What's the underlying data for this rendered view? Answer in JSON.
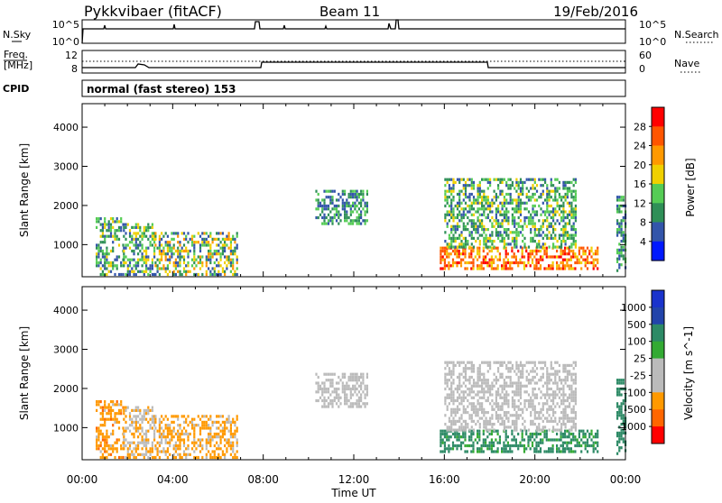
{
  "header": {
    "radar": "Pykkvibaer (fitACF)",
    "beam": "Beam 11",
    "date": "19/Feb/2016"
  },
  "sky_panel": {
    "left_label": "N.Sky",
    "right_label": "N.Search",
    "left_ticks": [
      "10^5",
      "10^0"
    ],
    "right_ticks": [
      "10^5",
      "10^0"
    ]
  },
  "freq_panel": {
    "left_label_line1": "Freq.",
    "left_label_line2": "[MHz]",
    "right_label": "Nave",
    "left_ticks": [
      "12",
      "8"
    ],
    "right_ticks": [
      "60",
      "0"
    ]
  },
  "cpid": {
    "label": "CPID",
    "text": "normal (fast stereo) 153"
  },
  "colors": {
    "power": [
      "#0019ff",
      "#3355aa",
      "#2f8f57",
      "#55cc55",
      "#f0d000",
      "#ff9900",
      "#ff5500",
      "#ff0000"
    ],
    "velocity": [
      "#ff0000",
      "#ff6600",
      "#ff9900",
      "#bbbbbb",
      "#bbbbbb",
      "#33aa33",
      "#2d8a66",
      "#2244aa",
      "#1a33cc"
    ]
  },
  "chart_data": [
    {
      "type": "heatmap",
      "ylabel": "Slant Range [km]",
      "y_ticks": [
        1000,
        2000,
        3000,
        4000
      ],
      "ylim": [
        180,
        4600
      ],
      "x_range_hours": [
        0,
        24
      ],
      "colorbar": {
        "label": "Power [dB]",
        "ticks": [
          "28",
          "24",
          "20",
          "16",
          "12",
          "8",
          "4"
        ],
        "range": [
          0,
          32
        ]
      },
      "clusters": [
        {
          "t0": 0.6,
          "t1": 1.8,
          "r0": 200,
          "r1": 1650,
          "v0": 4,
          "v1": 18
        },
        {
          "t0": 1.8,
          "t1": 3.2,
          "r0": 200,
          "r1": 1500,
          "v0": 4,
          "v1": 20
        },
        {
          "t0": 3.2,
          "t1": 6.8,
          "r0": 200,
          "r1": 1300,
          "v0": 4,
          "v1": 24
        },
        {
          "t0": 10.3,
          "t1": 12.6,
          "r0": 1500,
          "r1": 2350,
          "v0": 4,
          "v1": 16
        },
        {
          "t0": 15.8,
          "t1": 22.8,
          "r0": 350,
          "r1": 900,
          "v0": 18,
          "v1": 30
        },
        {
          "t0": 16.0,
          "t1": 21.8,
          "r0": 900,
          "r1": 2700,
          "v0": 6,
          "v1": 18
        },
        {
          "t0": 23.6,
          "t1": 24.0,
          "r0": 300,
          "r1": 2200,
          "v0": 4,
          "v1": 16
        }
      ]
    },
    {
      "type": "heatmap",
      "ylabel": "Slant Range [km]",
      "y_ticks": [
        1000,
        2000,
        3000,
        4000
      ],
      "ylim": [
        180,
        4600
      ],
      "x_range_hours": [
        0,
        24
      ],
      "x_ticks": [
        "00:00",
        "04:00",
        "08:00",
        "12:00",
        "16:00",
        "20:00",
        "00:00"
      ],
      "xlabel": "Time UT",
      "colorbar": {
        "label": "Velocity [m s^-1]",
        "ticks": [
          "1000",
          "500",
          "100",
          "25",
          "-25",
          "-100",
          "-500",
          "-1000"
        ],
        "range": [
          -1200,
          1200
        ]
      },
      "clusters": [
        {
          "t0": 0.6,
          "t1": 1.8,
          "r0": 200,
          "r1": 1650,
          "v0": -600,
          "v1": -80
        },
        {
          "t0": 1.8,
          "t1": 3.2,
          "r0": 200,
          "r1": 1500,
          "v0": -200,
          "v1": 20
        },
        {
          "t0": 3.2,
          "t1": 6.8,
          "r0": 200,
          "r1": 1300,
          "v0": -300,
          "v1": -30
        },
        {
          "t0": 10.3,
          "t1": 12.6,
          "r0": 1500,
          "r1": 2350,
          "v0": -20,
          "v1": 20
        },
        {
          "t0": 15.8,
          "t1": 22.8,
          "r0": 350,
          "r1": 900,
          "v0": 50,
          "v1": 300
        },
        {
          "t0": 16.0,
          "t1": 21.8,
          "r0": 900,
          "r1": 2700,
          "v0": -20,
          "v1": 20
        },
        {
          "t0": 23.6,
          "t1": 24.0,
          "r0": 300,
          "r1": 2200,
          "v0": 100,
          "v1": 400
        }
      ]
    }
  ]
}
